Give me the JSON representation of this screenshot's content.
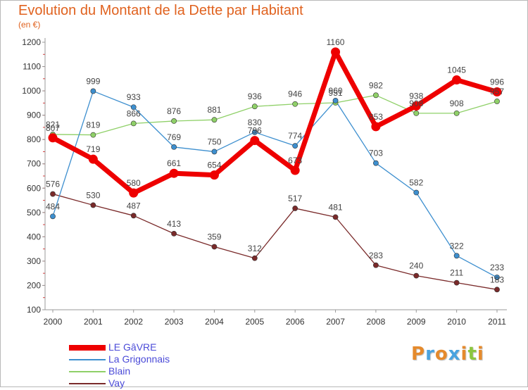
{
  "title": "Evolution du Montant de la Dette par Habitant",
  "subtitle": "(en €)",
  "logo": {
    "text": "Proxiti",
    "letters": [
      {
        "char": "P",
        "color": "#e58a2c"
      },
      {
        "char": "r",
        "color": "#4aa3df"
      },
      {
        "char": "o",
        "color": "#e58a2c"
      },
      {
        "char": "x",
        "color": "#4aa3df"
      },
      {
        "char": "i",
        "color": "#e58a2c"
      },
      {
        "char": "t",
        "color": "#8cc63f"
      },
      {
        "char": "i",
        "color": "#e58a2c"
      }
    ]
  },
  "chart_data": {
    "type": "line",
    "x": [
      "2000",
      "2001",
      "2002",
      "2003",
      "2004",
      "2005",
      "2006",
      "2007",
      "2008",
      "2009",
      "2010",
      "2011"
    ],
    "yticks": [
      100,
      200,
      300,
      400,
      500,
      600,
      700,
      800,
      900,
      1000,
      1100,
      1200
    ],
    "ylim": [
      100,
      1200
    ],
    "grid": false,
    "legend": "bottom-left",
    "series": [
      {
        "name": "LE GâVRE",
        "color": "#ee0000",
        "values": [
          807,
          719,
          580,
          661,
          654,
          796,
          673,
          1160,
          853,
          938,
          1045,
          996
        ],
        "labels": [
          "807",
          "719",
          "580",
          "661",
          "654",
          "796",
          "673",
          "1160",
          "853",
          "938",
          "1045",
          "996"
        ]
      },
      {
        "name": "La Grigonnais",
        "color": "#3d8fcf",
        "values": [
          484,
          999,
          933,
          769,
          750,
          830,
          774,
          960,
          703,
          582,
          322,
          233
        ],
        "labels": [
          "484",
          "999",
          "933",
          "769",
          "750",
          "830",
          "774",
          "960",
          "703",
          "582",
          "322",
          "233"
        ]
      },
      {
        "name": "Blain",
        "color": "#8fd068",
        "values": [
          821,
          819,
          866,
          876,
          881,
          936,
          946,
          951,
          982,
          908,
          908,
          957
        ],
        "labels": [
          "821",
          "819",
          "866",
          "876",
          "881",
          "936",
          "946",
          "951",
          "982",
          "908",
          "908",
          "957"
        ]
      },
      {
        "name": "Vay",
        "color": "#7a2a2a",
        "values": [
          576,
          530,
          487,
          413,
          359,
          312,
          517,
          481,
          283,
          240,
          211,
          183
        ],
        "labels": [
          "576",
          "530",
          "487",
          "413",
          "359",
          "312",
          "517",
          "481",
          "283",
          "240",
          "211",
          "183"
        ]
      }
    ]
  }
}
